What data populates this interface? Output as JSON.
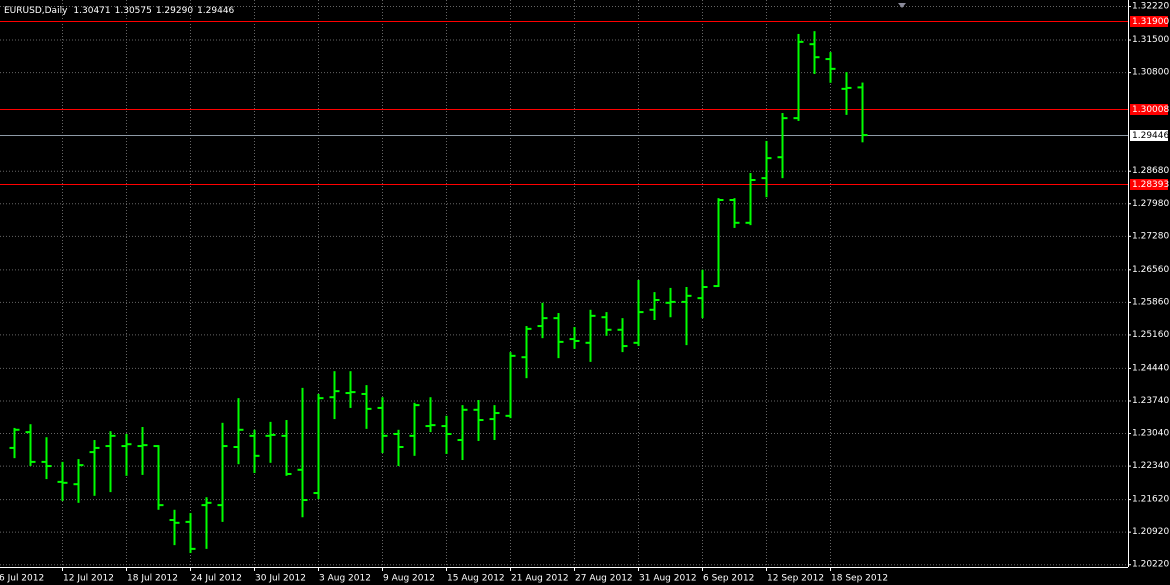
{
  "chart_data": {
    "type": "ohlc",
    "title": "EURUSD,Daily",
    "title_values": [
      "1.30471",
      "1.30575",
      "1.29290",
      "1.29446"
    ],
    "color": "#00ff00",
    "categories": [
      "6 Jul 2012",
      null,
      null,
      null,
      "12 Jul 2012",
      null,
      null,
      null,
      "18 Jul 2012",
      null,
      null,
      null,
      "24 Jul 2012",
      null,
      null,
      null,
      "30 Jul 2012",
      null,
      null,
      null,
      "3 Aug 2012",
      null,
      null,
      null,
      "9 Aug 2012",
      null,
      null,
      null,
      "15 Aug 2012",
      null,
      null,
      null,
      "21 Aug 2012",
      null,
      null,
      null,
      "27 Aug 2012",
      null,
      null,
      null,
      "31 Aug 2012",
      null,
      null,
      null,
      "6 Sep 2012",
      null,
      null,
      null,
      "12 Sep 2012",
      null,
      null,
      null,
      "18 Sep 2012",
      null,
      null
    ],
    "open": [
      null,
      1.2272,
      1.2306,
      1.2242,
      1.2199,
      1.2194,
      1.2263,
      1.2276,
      1.2276,
      1.2276,
      1.2276,
      1.2117,
      1.2113,
      1.2149,
      1.2149,
      1.2274,
      1.2298,
      1.2298,
      1.2298,
      1.2225,
      1.2175,
      1.2381,
      1.239,
      1.2388,
      1.2358,
      1.2302,
      1.2298,
      1.2319,
      1.2319,
      1.2289,
      1.2354,
      1.2334,
      1.2341,
      1.2467,
      1.2534,
      1.2551,
      1.2506,
      1.2498,
      1.2553,
      1.2526,
      1.2498,
      1.2569,
      1.2584,
      1.2586,
      1.2594,
      1.262,
      1.2805,
      1.2756,
      1.2852,
      1.2897,
      1.2981,
      1.314,
      1.3108,
      1.3044,
      1.30471
    ],
    "high": [
      null,
      1.2315,
      1.2323,
      1.2295,
      1.2242,
      1.2248,
      1.2289,
      1.2308,
      1.2302,
      1.2317,
      1.2278,
      1.2139,
      1.2132,
      1.2166,
      1.2326,
      1.2379,
      1.2311,
      1.2328,
      1.2332,
      1.2401,
      1.2388,
      1.2437,
      1.2437,
      1.2407,
      1.2381,
      1.2311,
      1.2369,
      1.2381,
      1.2341,
      1.2364,
      1.2375,
      1.2364,
      1.2478,
      1.2534,
      1.2584,
      1.2562,
      1.2532,
      1.2569,
      1.2564,
      1.2551,
      1.2633,
      1.2607,
      1.2616,
      1.2618,
      1.2655,
      1.2809,
      1.2809,
      1.2863,
      1.2932,
      1.2992,
      1.3162,
      1.3168,
      1.3123,
      1.308,
      1.30575
    ],
    "low": [
      null,
      1.225,
      1.2233,
      1.2205,
      1.2158,
      1.2154,
      1.2169,
      1.2177,
      1.2212,
      1.2214,
      1.2139,
      1.2063,
      1.2046,
      1.2055,
      1.2113,
      1.2237,
      1.2218,
      1.224,
      1.2212,
      1.2123,
      1.2162,
      1.2334,
      1.2358,
      1.2313,
      1.2261,
      1.2233,
      1.2255,
      1.2306,
      1.2259,
      1.2246,
      1.2287,
      1.2289,
      1.2336,
      1.2422,
      1.2508,
      1.2465,
      1.2485,
      1.2457,
      1.2513,
      1.2478,
      1.2491,
      1.2547,
      1.2553,
      1.2493,
      1.2551,
      1.2618,
      1.2745,
      1.2751,
      1.2811,
      1.2852,
      1.2975,
      1.3076,
      1.3057,
      1.2988,
      1.2929
    ],
    "close": [
      null,
      1.2311,
      1.2242,
      1.2233,
      1.2197,
      1.2235,
      1.2272,
      1.2298,
      1.228,
      1.2278,
      1.2149,
      1.2111,
      1.2055,
      1.2154,
      1.2276,
      1.2311,
      1.2255,
      1.23,
      1.2216,
      1.216,
      1.2379,
      1.2394,
      1.2392,
      1.2356,
      1.2298,
      1.2274,
      1.2364,
      1.2321,
      1.2302,
      1.2354,
      1.2332,
      1.2347,
      1.247,
      1.2528,
      1.2551,
      1.25,
      1.2502,
      1.2556,
      1.2526,
      1.2491,
      1.2564,
      1.259,
      1.2586,
      1.2599,
      1.2618,
      1.2805,
      1.2756,
      1.2848,
      1.2895,
      1.2981,
      1.3145,
      1.3112,
      1.3087,
      1.3046,
      1.29446
    ],
    "ylim": [
      1.2016,
      1.3235
    ],
    "yticks": [
      {
        "value": 1.3222,
        "label": "1.32220"
      },
      {
        "value": 1.315,
        "label": "1.31500"
      },
      {
        "value": 1.308,
        "label": "1.30800"
      },
      {
        "value": 1.2868,
        "label": "1.28680"
      },
      {
        "value": 1.2798,
        "label": "1.27980"
      },
      {
        "value": 1.2728,
        "label": "1.27280"
      },
      {
        "value": 1.2656,
        "label": "1.26560"
      },
      {
        "value": 1.2586,
        "label": "1.25860"
      },
      {
        "value": 1.2516,
        "label": "1.25160"
      },
      {
        "value": 1.2444,
        "label": "1.24440"
      },
      {
        "value": 1.2374,
        "label": "1.23740"
      },
      {
        "value": 1.2304,
        "label": "1.23040"
      },
      {
        "value": 1.2234,
        "label": "1.22340"
      },
      {
        "value": 1.2162,
        "label": "1.21620"
      },
      {
        "value": 1.2092,
        "label": "1.20920"
      },
      {
        "value": 1.2022,
        "label": "1.20220"
      }
    ],
    "levels": [
      {
        "value": 1.319,
        "label": "1.31900"
      },
      {
        "value": 1.30008,
        "label": "1.30008"
      },
      {
        "value": 1.28393,
        "label": "1.28393"
      }
    ],
    "level_color": "#ff0000",
    "grid": true
  }
}
